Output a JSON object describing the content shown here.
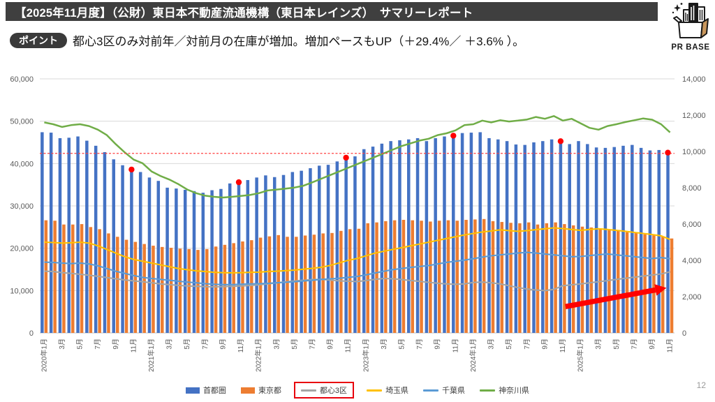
{
  "header": {
    "title": "【2025年11月度】（公財）東日本不動産流通機構（東日本レインズ）　サマリーレポート"
  },
  "logo": {
    "text": "PR BASE"
  },
  "point": {
    "badge": "ポイント",
    "text": "都心3区のみ対前年／対前月の在庫が増加。増加ペースもUP（＋29.4%／ ＋3.6% ）。"
  },
  "page_number": "12",
  "chart_data": {
    "type": "bar",
    "subtype": "combo-bar-line-dual-axis",
    "months": 71,
    "x_range_note": "monthly, 2020-01 through 2025-11",
    "x_tick_labels": [
      "2020年1月",
      "3月",
      "5月",
      "7月",
      "9月",
      "11月",
      "2021年1月",
      "3月",
      "5月",
      "7月",
      "9月",
      "11月",
      "2022年1月",
      "3月",
      "5月",
      "7月",
      "9月",
      "11月",
      "2023年1月",
      "3月",
      "5月",
      "7月",
      "9月",
      "11月",
      "2024年1月",
      "3月",
      "5月",
      "7月",
      "9月",
      "11月",
      "2025年1月",
      "3月",
      "5月",
      "7月",
      "9月",
      "11月"
    ],
    "left_axis": {
      "min": 0,
      "max": 60000,
      "step": 10000,
      "tick_labels": [
        "0",
        "10,000",
        "20,000",
        "30,000",
        "40,000",
        "50,000",
        "60,000"
      ]
    },
    "right_axis": {
      "min": 0,
      "max": 14000,
      "step": 2000,
      "tick_labels": [
        "0",
        "2,000",
        "4,000",
        "6,000",
        "8,000",
        "10,000",
        "12,000",
        "14,000"
      ]
    },
    "grid": "horizontal, left axis only",
    "legend_position": "bottom-center",
    "series": [
      {
        "key": "shutoken",
        "label": "首都圏",
        "kind": "bar",
        "axis": "left",
        "color": "#4472C4",
        "legend_highlight": false,
        "values": [
          47400,
          47300,
          46000,
          46100,
          46400,
          45400,
          44200,
          42700,
          41000,
          39600,
          38500,
          38000,
          36700,
          35900,
          34300,
          34100,
          33800,
          33500,
          33100,
          33700,
          34000,
          35300,
          35500,
          36100,
          36700,
          37200,
          36800,
          37300,
          38000,
          38300,
          38900,
          39500,
          39700,
          40500,
          41300,
          41700,
          43400,
          44000,
          44700,
          45300,
          45500,
          45700,
          46000,
          45300,
          46000,
          46400,
          46500,
          47200,
          47300,
          47400,
          46000,
          45700,
          45300,
          44500,
          44400,
          45000,
          45300,
          45700,
          45200,
          44600,
          45300,
          44600,
          43800,
          43700,
          43900,
          44200,
          44400,
          43700,
          43100,
          43200,
          42500
        ]
      },
      {
        "key": "tokyo",
        "label": "東京都",
        "kind": "bar",
        "axis": "left",
        "color": "#ED7D31",
        "legend_highlight": false,
        "values": [
          26600,
          26500,
          25600,
          25600,
          25700,
          25000,
          24500,
          23500,
          22700,
          22000,
          21500,
          21000,
          20600,
          20300,
          20100,
          19900,
          19800,
          19600,
          19800,
          20400,
          20800,
          21200,
          21600,
          21900,
          22500,
          22800,
          23100,
          22700,
          22700,
          23000,
          23200,
          23500,
          23600,
          24100,
          24500,
          24600,
          25900,
          26100,
          26400,
          26600,
          26700,
          26600,
          26500,
          26300,
          26500,
          26600,
          26500,
          26700,
          26800,
          26900,
          26400,
          26200,
          26000,
          25900,
          26100,
          25600,
          25900,
          26100,
          25700,
          25400,
          25100,
          24900,
          24700,
          24400,
          24100,
          23800,
          23600,
          23300,
          23100,
          22800,
          22300
        ]
      },
      {
        "key": "toshin3ku",
        "label": "都心3区",
        "kind": "line",
        "axis": "right",
        "color": "#A5A5A5",
        "legend_highlight": true,
        "values": [
          3400,
          3380,
          3320,
          3280,
          3230,
          3180,
          3120,
          3050,
          2980,
          2920,
          2870,
          2820,
          2760,
          2700,
          2660,
          2620,
          2590,
          2570,
          2550,
          2540,
          2550,
          2570,
          2590,
          2610,
          2650,
          2700,
          2760,
          2810,
          2860,
          2900,
          2940,
          2950,
          2910,
          2870,
          2850,
          2830,
          2890,
          2950,
          3000,
          2980,
          2940,
          2890,
          2840,
          2790,
          2740,
          2700,
          2680,
          2700,
          2780,
          2800,
          2760,
          2700,
          2600,
          2500,
          2420,
          2360,
          2330,
          2400,
          2600,
          2650,
          2700,
          2760,
          2820,
          2880,
          2950,
          3010,
          3070,
          3130,
          3190,
          3250,
          3365
        ]
      },
      {
        "key": "saitama",
        "label": "埼玉県",
        "kind": "line",
        "axis": "right",
        "color": "#FFC000",
        "legend_highlight": false,
        "values": [
          5000,
          4980,
          4950,
          4970,
          5000,
          4950,
          4800,
          4600,
          4400,
          4200,
          4050,
          3950,
          3850,
          3750,
          3650,
          3550,
          3480,
          3420,
          3380,
          3340,
          3320,
          3310,
          3320,
          3340,
          3350,
          3380,
          3400,
          3430,
          3460,
          3510,
          3560,
          3620,
          3720,
          3860,
          4000,
          4100,
          4250,
          4400,
          4500,
          4600,
          4700,
          4800,
          4900,
          5000,
          5100,
          5200,
          5300,
          5400,
          5480,
          5560,
          5620,
          5680,
          5640,
          5600,
          5640,
          5690,
          5740,
          5790,
          5750,
          5700,
          5650,
          5700,
          5740,
          5700,
          5650,
          5600,
          5540,
          5480,
          5420,
          5350,
          5150
        ]
      },
      {
        "key": "chiba",
        "label": "千葉県",
        "kind": "line",
        "axis": "right",
        "color": "#5B9BD5",
        "legend_highlight": false,
        "values": [
          3900,
          3880,
          3850,
          3820,
          3850,
          3800,
          3700,
          3550,
          3400,
          3280,
          3160,
          3060,
          3000,
          2950,
          2900,
          2850,
          2800,
          2760,
          2710,
          2680,
          2660,
          2660,
          2680,
          2700,
          2710,
          2730,
          2760,
          2790,
          2820,
          2860,
          2900,
          2950,
          2980,
          3010,
          3060,
          3110,
          3200,
          3300,
          3400,
          3490,
          3550,
          3610,
          3660,
          3710,
          3800,
          3890,
          3950,
          4010,
          4090,
          4180,
          4250,
          4300,
          4350,
          4400,
          4440,
          4400,
          4350,
          4300,
          4250,
          4200,
          4210,
          4260,
          4310,
          4350,
          4300,
          4250,
          4200,
          4150,
          4100,
          4150,
          4090
        ]
      },
      {
        "key": "kanagawa",
        "label": "神奈川県",
        "kind": "line",
        "axis": "right",
        "color": "#70AD47",
        "legend_highlight": false,
        "values": [
          11600,
          11500,
          11350,
          11450,
          11500,
          11400,
          11200,
          10900,
          10400,
          9950,
          9550,
          9350,
          8900,
          8650,
          8450,
          8200,
          7900,
          7700,
          7560,
          7500,
          7460,
          7500,
          7550,
          7600,
          7700,
          7850,
          7900,
          7950,
          8010,
          8110,
          8300,
          8500,
          8700,
          8900,
          9100,
          9300,
          9500,
          9700,
          9900,
          10100,
          10300,
          10450,
          10600,
          10700,
          10900,
          11000,
          11160,
          11450,
          11500,
          11700,
          11600,
          11720,
          11650,
          11700,
          11760,
          11900,
          11800,
          11950,
          11700,
          11800,
          11550,
          11300,
          11200,
          11400,
          11500,
          11620,
          11720,
          11820,
          11750,
          11500,
          11050
        ]
      }
    ],
    "red_dashed_line": {
      "axis": "left",
      "value": 42400,
      "color": "#FF4040"
    },
    "red_dots": {
      "series": "shutoken",
      "month_indices": [
        10,
        22,
        34,
        46,
        58,
        70
      ],
      "color": "#FF0000"
    },
    "arrow_annotation": {
      "color": "#FF0000",
      "from": {
        "month": 58.3,
        "value_right": 1450
      },
      "to": {
        "month": 69.6,
        "value_right": 2480
      }
    }
  }
}
